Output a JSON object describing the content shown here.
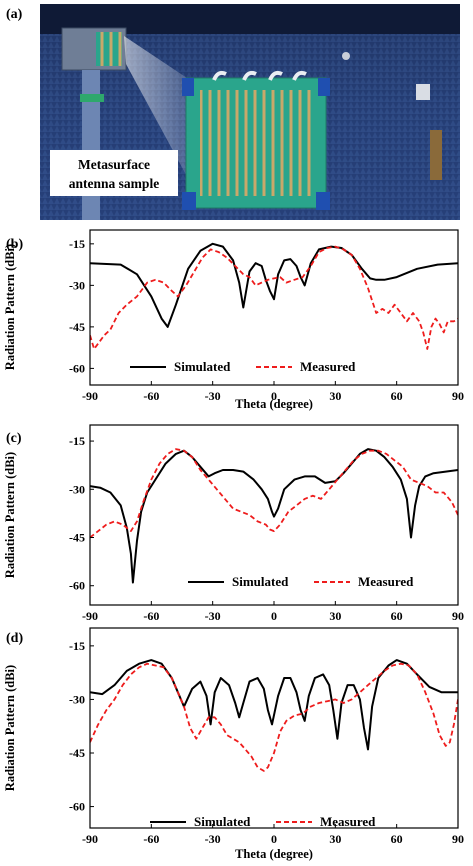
{
  "figure": {
    "panel_labels": [
      "(a)",
      "(b)",
      "(c)",
      "(d)"
    ],
    "photo": {
      "caption_lines": [
        "Metasurface",
        "antenna sample"
      ],
      "colors": {
        "chamber": "#1b2f5c",
        "absorber": "#2a4478",
        "board": "#2aa58c",
        "patch": "#c9a86a",
        "clamp": "#1f4fb0"
      }
    }
  },
  "chart_data": [
    {
      "type": "line",
      "panel": "(b)",
      "xlabel": "Theta (degree)",
      "ylabel": "Radiation Pattern (dBi)",
      "xlim": [
        -90,
        90
      ],
      "ylim": [
        -66,
        -10
      ],
      "xticks": [
        -90,
        -60,
        -30,
        0,
        30,
        60,
        90
      ],
      "yticks": [
        -15,
        -30,
        -45,
        -60
      ],
      "legend": "bottom-center",
      "grid": false,
      "series": [
        {
          "name": "Simulated",
          "color": "#000000",
          "dash": "solid",
          "x": [
            -90,
            -75,
            -67,
            -60,
            -55,
            -52,
            -48,
            -42,
            -36,
            -30,
            -25,
            -20,
            -17,
            -15,
            -12,
            -9,
            -6,
            -4,
            -2,
            0,
            2,
            5,
            8,
            11,
            13,
            15,
            18,
            22,
            28,
            33,
            38,
            43,
            47,
            50,
            54,
            60,
            70,
            80,
            90
          ],
          "y": [
            -22,
            -22.5,
            -26,
            -34,
            -42,
            -45,
            -37,
            -24,
            -17.5,
            -15,
            -16,
            -21,
            -29,
            -38,
            -25,
            -22,
            -23,
            -28,
            -32,
            -35,
            -26,
            -21,
            -20.5,
            -23,
            -27,
            -30,
            -22,
            -17,
            -16,
            -16.5,
            -19,
            -24,
            -27.5,
            -28,
            -28,
            -27,
            -24,
            -22.5,
            -22
          ]
        },
        {
          "name": "Measured",
          "color": "#ee1c1c",
          "dash": "dashed",
          "x": [
            -90,
            -88,
            -86,
            -83,
            -80,
            -76,
            -72,
            -67,
            -62,
            -58,
            -54,
            -50,
            -47,
            -43,
            -39,
            -35,
            -31,
            -27,
            -23,
            -19,
            -15,
            -12,
            -9,
            -6,
            -3,
            0,
            3,
            6,
            10,
            14,
            18,
            22,
            26,
            30,
            34,
            38,
            42,
            46,
            50,
            53,
            56,
            59,
            62,
            65,
            68,
            71,
            73,
            75,
            77,
            79,
            81,
            83,
            85,
            88,
            90
          ],
          "y": [
            -48,
            -53,
            -51,
            -48,
            -46,
            -40,
            -37,
            -34,
            -29,
            -28,
            -29,
            -32,
            -34,
            -30,
            -25,
            -20,
            -17,
            -18,
            -20,
            -23,
            -26,
            -27,
            -30,
            -29,
            -28,
            -27.5,
            -27,
            -29,
            -28,
            -27,
            -23,
            -18,
            -16.5,
            -16,
            -17,
            -19,
            -24,
            -31,
            -40,
            -38.5,
            -40,
            -37,
            -40,
            -43,
            -40,
            -43,
            -47,
            -53,
            -45,
            -42,
            -44,
            -47,
            -43,
            -43,
            -42
          ]
        }
      ]
    },
    {
      "type": "line",
      "panel": "(c)",
      "xlabel": "",
      "ylabel": "Radiation Pattern (dBi)",
      "xlim": [
        -90,
        90
      ],
      "ylim": [
        -66,
        -10
      ],
      "xticks": [
        -90,
        -60,
        -30,
        0,
        30,
        60,
        90
      ],
      "yticks": [
        -15,
        -30,
        -45,
        -60
      ],
      "legend": "bottom-right",
      "grid": false,
      "series": [
        {
          "name": "Simulated",
          "color": "#000000",
          "dash": "solid",
          "x": [
            -90,
            -85,
            -80,
            -75,
            -72,
            -70,
            -69,
            -67,
            -65,
            -62,
            -58,
            -53,
            -48,
            -44,
            -40,
            -36,
            -32,
            -29,
            -25,
            -20,
            -15,
            -10,
            -6,
            -3,
            -1,
            0,
            2,
            5,
            10,
            15,
            20,
            25,
            30,
            34,
            38,
            42,
            46,
            50,
            54,
            58,
            62,
            65,
            67,
            69,
            71,
            74,
            78,
            84,
            90
          ],
          "y": [
            -29,
            -29.5,
            -31,
            -35,
            -42,
            -50,
            -59,
            -46,
            -37,
            -31,
            -27,
            -22,
            -19,
            -18,
            -20,
            -23,
            -26,
            -25,
            -24,
            -24,
            -24.5,
            -27,
            -30,
            -33,
            -37,
            -38.5,
            -36,
            -30,
            -27,
            -26,
            -26,
            -28,
            -27.5,
            -25,
            -22,
            -19,
            -17.5,
            -18,
            -20,
            -23,
            -27,
            -33,
            -45,
            -35,
            -29,
            -26,
            -25,
            -24.5,
            -24
          ]
        },
        {
          "name": "Measured",
          "color": "#ee1c1c",
          "dash": "dashed",
          "x": [
            -90,
            -86,
            -82,
            -78,
            -74,
            -70,
            -67,
            -64,
            -60,
            -56,
            -52,
            -48,
            -44,
            -40,
            -36,
            -32,
            -28,
            -24,
            -20,
            -16,
            -12,
            -8,
            -4,
            -2,
            0,
            3,
            7,
            11,
            15,
            19,
            23,
            27,
            31,
            35,
            39,
            43,
            47,
            51,
            55,
            59,
            63,
            67,
            71,
            75,
            79,
            83,
            87,
            90
          ],
          "y": [
            -45,
            -43,
            -41,
            -40,
            -41,
            -43,
            -40,
            -34,
            -27,
            -22,
            -19,
            -17.5,
            -18,
            -20,
            -24,
            -27,
            -30,
            -33,
            -36,
            -37,
            -38,
            -40,
            -41,
            -42.5,
            -43,
            -41,
            -37,
            -35,
            -33,
            -32,
            -33,
            -30,
            -27,
            -24,
            -21,
            -19,
            -18,
            -18,
            -19,
            -21,
            -23,
            -27,
            -28,
            -29,
            -31,
            -31,
            -34,
            -38
          ]
        }
      ]
    },
    {
      "type": "line",
      "panel": "(d)",
      "xlabel": "Theta (degree)",
      "ylabel": "Radiation Pattern (dBi)",
      "xlim": [
        -90,
        90
      ],
      "ylim": [
        -66,
        -10
      ],
      "xticks": [
        -90,
        -60,
        -30,
        0,
        30,
        60,
        90
      ],
      "yticks": [
        -15,
        -30,
        -45,
        -60
      ],
      "legend": "bottom-center",
      "grid": false,
      "series": [
        {
          "name": "Simulated",
          "color": "#000000",
          "dash": "solid",
          "x": [
            -90,
            -84,
            -78,
            -72,
            -66,
            -60,
            -55,
            -50,
            -47,
            -44,
            -40,
            -36,
            -33,
            -31,
            -29,
            -26,
            -22,
            -19,
            -17,
            -15,
            -12,
            -8,
            -5,
            -3,
            -1,
            2,
            5,
            8,
            11,
            13,
            15,
            17,
            20,
            24,
            27,
            29,
            31,
            33,
            36,
            39,
            42,
            44,
            46,
            48,
            51,
            56,
            60,
            65,
            70,
            76,
            82,
            90
          ],
          "y": [
            -28,
            -28.5,
            -26,
            -22,
            -20,
            -19,
            -20,
            -24,
            -28,
            -32,
            -27,
            -25,
            -29,
            -37,
            -28,
            -24,
            -26,
            -31,
            -35,
            -31,
            -25,
            -24,
            -27,
            -33,
            -37,
            -29,
            -24,
            -24,
            -28,
            -33,
            -36,
            -29,
            -24,
            -23,
            -26,
            -33,
            -41,
            -31,
            -26,
            -26,
            -30,
            -38,
            -44,
            -32,
            -24,
            -20.5,
            -19,
            -20,
            -23,
            -26.5,
            -28,
            -28
          ]
        },
        {
          "name": "Measured",
          "color": "#ee1c1c",
          "dash": "dashed",
          "x": [
            -90,
            -86,
            -82,
            -78,
            -74,
            -70,
            -66,
            -62,
            -58,
            -54,
            -50,
            -47,
            -44,
            -41,
            -38,
            -35,
            -32,
            -29,
            -26,
            -23,
            -20,
            -17,
            -14,
            -11,
            -8,
            -5,
            -3,
            0,
            3,
            6,
            10,
            14,
            18,
            22,
            26,
            30,
            34,
            38,
            42,
            46,
            50,
            54,
            58,
            62,
            66,
            70,
            74,
            78,
            81,
            84,
            86,
            88,
            90
          ],
          "y": [
            -42,
            -37,
            -33,
            -30,
            -26,
            -23,
            -21,
            -20,
            -20.5,
            -21,
            -24,
            -28,
            -32,
            -38,
            -41,
            -38,
            -35,
            -35,
            -37,
            -40,
            -41,
            -42,
            -44,
            -46,
            -49,
            -50,
            -49,
            -45,
            -39,
            -36,
            -34.5,
            -34,
            -32,
            -31,
            -30.5,
            -30,
            -31,
            -30,
            -28,
            -26,
            -24,
            -22,
            -20.5,
            -20,
            -20.5,
            -23,
            -28,
            -34,
            -40,
            -43,
            -42,
            -37,
            -30
          ]
        }
      ]
    }
  ]
}
